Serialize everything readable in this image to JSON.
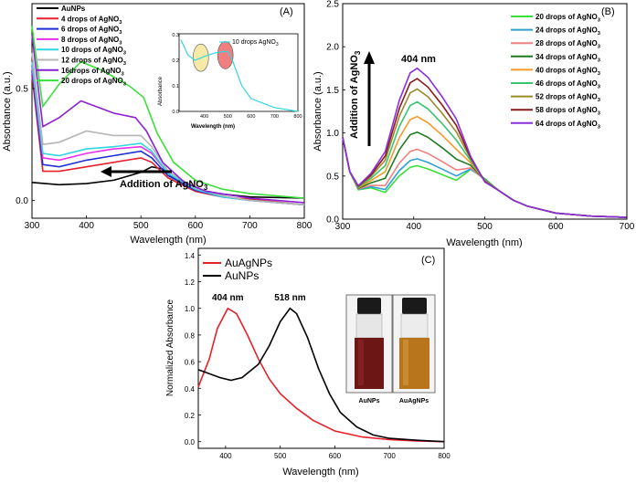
{
  "chart_data": [
    {
      "type": "line",
      "panel_label": "(A)",
      "xlabel": "Wavelength (nm)",
      "ylabel": "Absorbance (a.u.)",
      "xlim": [
        300,
        800
      ],
      "ylim": [
        -0.08,
        0.88
      ],
      "x_ticks": [
        300,
        400,
        500,
        600,
        700,
        800
      ],
      "y_ticks": [
        0.0,
        0.5
      ],
      "annotation": "Addition of  AgNO",
      "annotation_sub": "3",
      "series": [
        {
          "name": "AuNPs",
          "color": "#000000",
          "points": [
            [
              300,
              0.08
            ],
            [
              350,
              0.07
            ],
            [
              400,
              0.075
            ],
            [
              450,
              0.09
            ],
            [
              500,
              0.125
            ],
            [
              520,
              0.15
            ],
            [
              540,
              0.14
            ],
            [
              560,
              0.1
            ],
            [
              600,
              0.05
            ],
            [
              650,
              0.028
            ],
            [
              700,
              0.015
            ],
            [
              800,
              0.01
            ]
          ]
        },
        {
          "name": "4 drops of AgNO3",
          "color": "#e8202a",
          "points": [
            [
              300,
              0.56
            ],
            [
              320,
              0.13
            ],
            [
              350,
              0.13
            ],
            [
              400,
              0.15
            ],
            [
              450,
              0.17
            ],
            [
              500,
              0.19
            ],
            [
              520,
              0.17
            ],
            [
              550,
              0.1
            ],
            [
              600,
              0.04
            ],
            [
              650,
              0.015
            ],
            [
              700,
              0.005
            ],
            [
              800,
              -0.02
            ]
          ]
        },
        {
          "name": "6 drops of AgNO3",
          "color": "#1f2fd6",
          "points": [
            [
              300,
              0.58
            ],
            [
              320,
              0.16
            ],
            [
              350,
              0.15
            ],
            [
              400,
              0.18
            ],
            [
              450,
              0.2
            ],
            [
              500,
              0.22
            ],
            [
              520,
              0.19
            ],
            [
              550,
              0.11
            ],
            [
              600,
              0.045
            ],
            [
              650,
              0.015
            ],
            [
              700,
              0.0
            ],
            [
              800,
              -0.02
            ]
          ]
        },
        {
          "name": "8 drops of AgNO3",
          "color": "#e82ee8",
          "points": [
            [
              300,
              0.6
            ],
            [
              320,
              0.19
            ],
            [
              350,
              0.18
            ],
            [
              400,
              0.21
            ],
            [
              450,
              0.23
            ],
            [
              500,
              0.24
            ],
            [
              520,
              0.21
            ],
            [
              550,
              0.12
            ],
            [
              600,
              0.05
            ],
            [
              650,
              0.015
            ],
            [
              700,
              0.0
            ],
            [
              800,
              -0.02
            ]
          ]
        },
        {
          "name": "10 drops of AgNO3",
          "color": "#2fd6e0",
          "points": [
            [
              300,
              0.62
            ],
            [
              320,
              0.21
            ],
            [
              350,
              0.2
            ],
            [
              400,
              0.23
            ],
            [
              450,
              0.24
            ],
            [
              500,
              0.255
            ],
            [
              520,
              0.22
            ],
            [
              550,
              0.12
            ],
            [
              600,
              0.05
            ],
            [
              650,
              0.015
            ],
            [
              700,
              0.0
            ],
            [
              800,
              -0.02
            ]
          ]
        },
        {
          "name": "12 drops of AgNO3",
          "color": "#b5b5b5",
          "points": [
            [
              300,
              0.66
            ],
            [
              320,
              0.25
            ],
            [
              350,
              0.26
            ],
            [
              400,
              0.31
            ],
            [
              450,
              0.29
            ],
            [
              500,
              0.29
            ],
            [
              520,
              0.24
            ],
            [
              550,
              0.13
            ],
            [
              600,
              0.055
            ],
            [
              650,
              0.02
            ],
            [
              700,
              0.0
            ],
            [
              800,
              -0.02
            ]
          ]
        },
        {
          "name": "16drops of AgNO3",
          "color": "#8a1fd6",
          "points": [
            [
              300,
              0.74
            ],
            [
              320,
              0.33
            ],
            [
              350,
              0.37
            ],
            [
              390,
              0.445
            ],
            [
              450,
              0.39
            ],
            [
              490,
              0.37
            ],
            [
              510,
              0.31
            ],
            [
              540,
              0.17
            ],
            [
              580,
              0.08
            ],
            [
              620,
              0.04
            ],
            [
              700,
              0.01
            ],
            [
              800,
              -0.01
            ]
          ]
        },
        {
          "name": "20 drops of AgNO3",
          "color": "#3ae03a",
          "points": [
            [
              300,
              0.78
            ],
            [
              320,
              0.42
            ],
            [
              350,
              0.52
            ],
            [
              390,
              0.62
            ],
            [
              430,
              0.58
            ],
            [
              480,
              0.51
            ],
            [
              505,
              0.46
            ],
            [
              530,
              0.3
            ],
            [
              560,
              0.17
            ],
            [
              600,
              0.09
            ],
            [
              650,
              0.05
            ],
            [
              700,
              0.03
            ],
            [
              800,
              0.01
            ]
          ]
        }
      ],
      "inset": {
        "legend": "10 drops AgNO",
        "legend_sub": "3",
        "xlabel": "Wavelength (nm)",
        "ylabel": "Absorbance",
        "xlim": [
          300,
          800
        ],
        "ylim": [
          0.0,
          0.3
        ],
        "x_ticks": [
          400,
          500,
          600,
          700,
          800
        ],
        "y_ticks": [
          0.0,
          0.1,
          0.2,
          0.3
        ],
        "series": {
          "name": "10 drops AgNO3",
          "color": "#2fd6e0",
          "points": [
            [
              300,
              0.28
            ],
            [
              330,
              0.22
            ],
            [
              360,
              0.2
            ],
            [
              400,
              0.215
            ],
            [
              450,
              0.23
            ],
            [
              500,
              0.235
            ],
            [
              520,
              0.2
            ],
            [
              560,
              0.1
            ],
            [
              600,
              0.05
            ],
            [
              700,
              0.015
            ],
            [
              800,
              0.0
            ]
          ]
        },
        "highlights": [
          {
            "center_x": 385,
            "center_y": 0.21,
            "color": "#f7e9a8"
          },
          {
            "center_x": 490,
            "center_y": 0.22,
            "color": "#f08080"
          }
        ]
      }
    },
    {
      "type": "line",
      "panel_label": "(B)",
      "xlabel": "Wavelength (nm)",
      "ylabel": "Absorbance (a.u.)",
      "xlim": [
        300,
        700
      ],
      "ylim": [
        0.0,
        2.5
      ],
      "x_ticks": [
        300,
        400,
        500,
        600,
        700
      ],
      "y_ticks": [
        0.0,
        0.5,
        1.0,
        1.5,
        2.0,
        2.5
      ],
      "peak_label": "404 nm",
      "annotation": "Addition of AgNO",
      "annotation_sub": "3",
      "series": [
        {
          "name": "20 drops of AgNO3",
          "color": "#3ae03a",
          "peak": 0.62
        },
        {
          "name": "24 drops of AgNO3",
          "color": "#2fa0d6",
          "peak": 0.7
        },
        {
          "name": "28 drops of AgNO3",
          "color": "#f08080",
          "peak": 0.81
        },
        {
          "name": "34 drops of AgNO3",
          "color": "#1f7a1f",
          "peak": 1.01
        },
        {
          "name": "40 drops of AgNO3",
          "color": "#f59a2a",
          "peak": 1.19
        },
        {
          "name": "46 drops of AgNO3",
          "color": "#39c470",
          "peak": 1.36
        },
        {
          "name": "52 drops of AgNO3",
          "color": "#9a8a2a",
          "peak": 1.51
        },
        {
          "name": "58 drops of AgNO3",
          "color": "#8a1a1a",
          "peak": 1.63
        },
        {
          "name": "64 drops of AgNO3",
          "color": "#8a2fe0",
          "peak": 1.75
        }
      ]
    },
    {
      "type": "line",
      "panel_label": "(C)",
      "xlabel": "Wavelength (nm)",
      "ylabel": "Normalized Absorbance",
      "xlim": [
        350,
        800
      ],
      "ylim": [
        -0.05,
        1.45
      ],
      "x_ticks": [
        400,
        500,
        600,
        700,
        800
      ],
      "y_ticks": [
        0.0,
        0.2,
        0.4,
        0.6,
        0.8,
        1.0,
        1.2,
        1.4
      ],
      "peak_labels": [
        {
          "text": "404 nm",
          "x": 404,
          "y": 1.06
        },
        {
          "text": "518 nm",
          "x": 518,
          "y": 1.06
        }
      ],
      "photo_labels": [
        "AuNPs",
        "AuAgNPs"
      ],
      "series": [
        {
          "name": "AuAgNPs",
          "color": "#e8202a",
          "points": [
            [
              350,
              0.41
            ],
            [
              370,
              0.62
            ],
            [
              385,
              0.85
            ],
            [
              404,
              1.0
            ],
            [
              420,
              0.96
            ],
            [
              440,
              0.8
            ],
            [
              460,
              0.62
            ],
            [
              480,
              0.47
            ],
            [
              500,
              0.36
            ],
            [
              530,
              0.25
            ],
            [
              560,
              0.16
            ],
            [
              600,
              0.08
            ],
            [
              650,
              0.035
            ],
            [
              700,
              0.015
            ],
            [
              750,
              0.005
            ],
            [
              800,
              0.0
            ]
          ]
        },
        {
          "name": "AuNPs",
          "color": "#000000",
          "points": [
            [
              350,
              0.54
            ],
            [
              370,
              0.51
            ],
            [
              390,
              0.48
            ],
            [
              410,
              0.46
            ],
            [
              430,
              0.48
            ],
            [
              460,
              0.58
            ],
            [
              480,
              0.72
            ],
            [
              500,
              0.9
            ],
            [
              518,
              1.0
            ],
            [
              530,
              0.96
            ],
            [
              550,
              0.78
            ],
            [
              570,
              0.55
            ],
            [
              590,
              0.36
            ],
            [
              610,
              0.22
            ],
            [
              640,
              0.11
            ],
            [
              670,
              0.05
            ],
            [
              700,
              0.025
            ],
            [
              750,
              0.01
            ],
            [
              800,
              0.0
            ]
          ]
        }
      ]
    }
  ]
}
